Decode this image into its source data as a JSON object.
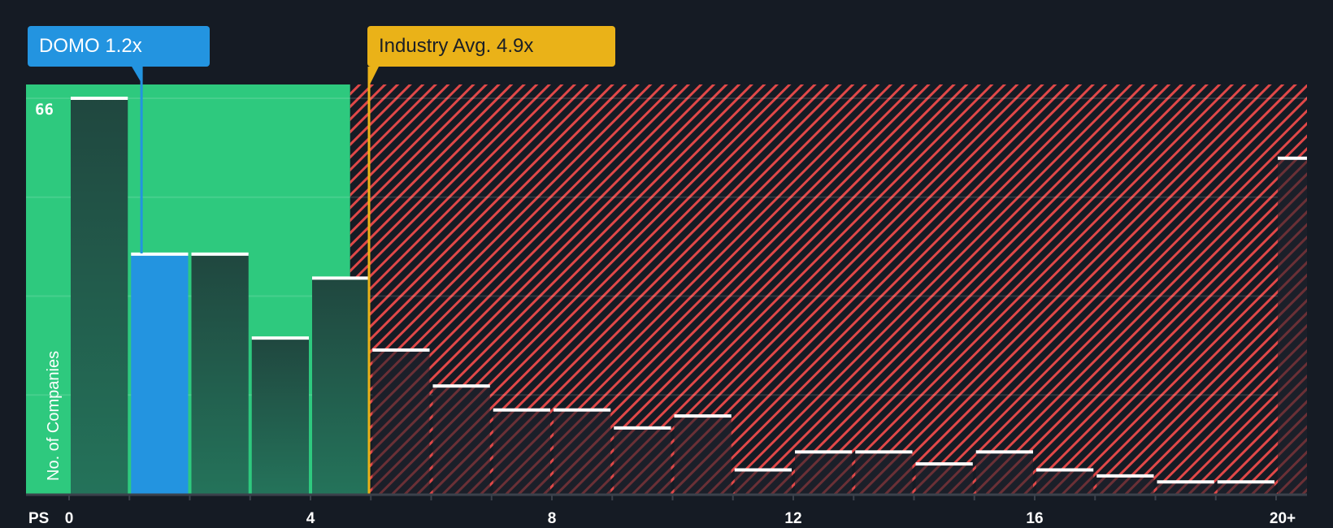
{
  "callouts": {
    "company": {
      "label": "DOMO 1.2x",
      "value": 1.2,
      "color": "#2394e0"
    },
    "industry": {
      "label": "Industry Avg. 4.9x",
      "value": 4.9,
      "color": "#eab218"
    }
  },
  "axis": {
    "y_label": "No. of Companies",
    "y_max_label": "66",
    "x_title": "PS",
    "x_ticks": [
      {
        "label": "0",
        "value": 0
      },
      {
        "label": "4",
        "value": 4
      },
      {
        "label": "8",
        "value": 8
      },
      {
        "label": "12",
        "value": 12
      },
      {
        "label": "16",
        "value": 16
      },
      {
        "label": "20+",
        "value": 20
      }
    ]
  },
  "colors": {
    "background": "#151b24",
    "fair_zone": "#2ec97e",
    "overvalued_hatch": "#e04848",
    "bar_in_fair": "#20473f",
    "bar_in_fair_bottom": "#24735a",
    "bar_overvalued": "#1b1f29",
    "highlight_bar": "#2394e0",
    "bar_cap": "#ffffff",
    "grid": "rgba(255,255,255,0.12)",
    "axis": "#3b414b"
  },
  "chart_data": {
    "type": "bar",
    "title": "",
    "xlabel": "PS",
    "ylabel": "No. of Companies",
    "bin_width": 1,
    "categories": [
      "0-1",
      "1-2",
      "2-3",
      "3-4",
      "4-5",
      "5-6",
      "6-7",
      "7-8",
      "8-9",
      "9-10",
      "10-11",
      "11-12",
      "12-13",
      "13-14",
      "14-15",
      "15-16",
      "16-17",
      "17-18",
      "18-19",
      "19-20",
      "20+"
    ],
    "values": [
      66,
      40,
      40,
      26,
      36,
      24,
      18,
      14,
      14,
      11,
      13,
      4,
      7,
      7,
      5,
      7,
      4,
      3,
      2,
      2,
      56
    ],
    "highlight_index": 1,
    "highlight_label": "DOMO 1.2x",
    "reference_line": {
      "label": "Industry Avg. 4.9x",
      "x": 4.9
    },
    "fair_zone": [
      0,
      4.9
    ],
    "ylim": [
      0,
      66
    ],
    "y_gridlines": [
      0,
      16.5,
      33,
      49.5,
      66
    ],
    "x_ticks": [
      "0",
      "4",
      "8",
      "12",
      "16",
      "20+"
    ],
    "grid": true,
    "legend": null
  }
}
